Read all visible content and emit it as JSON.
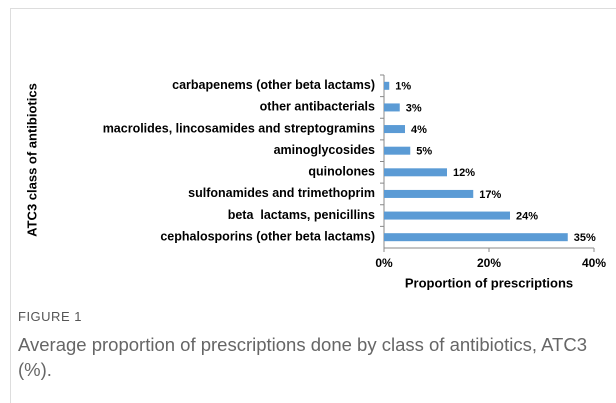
{
  "chart_data": {
    "type": "bar",
    "orientation": "horizontal",
    "y_axis_label": "ATC3 class of antibiotics",
    "x_axis_label": "Proportion of prescriptions",
    "categories": [
      "carbapenems (other beta lactams)",
      "other antibacterials",
      "macrolides, lincosamides and streptogramins",
      "aminoglycosides",
      "quinolones",
      "sulfonamides and trimethoprim",
      "beta  lactams, penicillins",
      "cephalosporins (other beta lactams)"
    ],
    "values": [
      1,
      3,
      4,
      5,
      12,
      17,
      24,
      35
    ],
    "value_labels": [
      "1%",
      "3%",
      "4%",
      "5%",
      "12%",
      "17%",
      "24%",
      "35%"
    ],
    "color": "#5b9bd5",
    "xlim": [
      0,
      40
    ],
    "xticks": [
      {
        "value": 0,
        "label": "0%"
      },
      {
        "value": 20,
        "label": "20%"
      },
      {
        "value": 40,
        "label": "40%"
      }
    ],
    "grid": false
  },
  "caption": {
    "label": "FIGURE 1",
    "text": "Average proportion of prescriptions done by class of antibiotics, ATC3 (%)."
  }
}
